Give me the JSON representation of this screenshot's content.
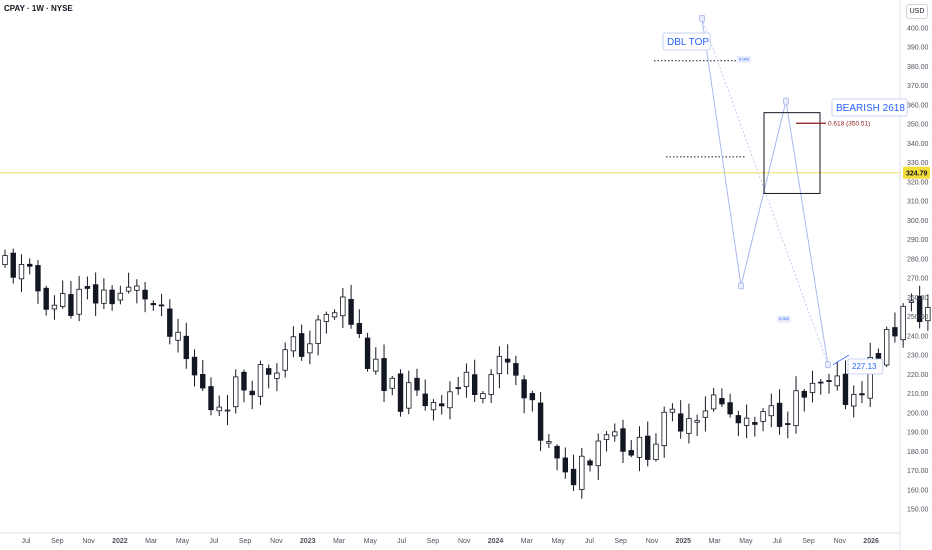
{
  "header": {
    "symbol": "CPAY",
    "interval": "1W",
    "exchange": "NYSE",
    "title": "CPAY · 1W · NYSE",
    "currency": "USD"
  },
  "colors": {
    "candle": "#131722",
    "up_fill": "#ffffff",
    "down_fill": "#131722",
    "pattern": "#aab8ee",
    "label": "#2962ff",
    "fib": "#8b1a1a",
    "price_line": "#f2e05a",
    "axis_text": "#50535e"
  },
  "chart_data": {
    "type": "candlestick",
    "y_ticks": [
      "400.00",
      "390.00",
      "380.00",
      "370.00",
      "360.00",
      "350.00",
      "340.00",
      "330.00",
      "320.00",
      "310.00",
      "300.00",
      "290.00",
      "280.00",
      "270.00",
      "260.00",
      "250.00",
      "240.00",
      "230.00",
      "220.00",
      "210.00",
      "200.00",
      "190.00",
      "180.00",
      "170.00",
      "160.00",
      "150.00"
    ],
    "x_ticks": [
      "Jul",
      "Sep",
      "Nov",
      "2022",
      "Mar",
      "May",
      "Jul",
      "Sep",
      "Nov",
      "2023",
      "Mar",
      "May",
      "Jul",
      "Sep",
      "Nov",
      "2024",
      "Mar",
      "May",
      "Jul",
      "Sep",
      "Nov",
      "2025",
      "Mar",
      "May",
      "Jul",
      "Sep",
      "Nov",
      "2026"
    ],
    "ylim": [
      150,
      405
    ],
    "last_price": 324.79,
    "anchors": [
      [
        "2021-06-21",
        279
      ],
      [
        "2021-08-02",
        257
      ],
      [
        "2021-09-20",
        262
      ],
      [
        "2021-10-18",
        262
      ],
      [
        "2021-12-13",
        204
      ],
      [
        "2022-03-07",
        238
      ],
      [
        "2022-04-04",
        257
      ],
      [
        "2022-05-09",
        210
      ],
      [
        "2022-06-13",
        207
      ],
      [
        "2022-08-22",
        224
      ],
      [
        "2022-10-10",
        163
      ],
      [
        "2022-11-14",
        194
      ],
      [
        "2022-12-12",
        180
      ],
      [
        "2023-01-09",
        196
      ],
      [
        "2023-02-13",
        207
      ],
      [
        "2023-03-13",
        189
      ],
      [
        "2023-04-10",
        201
      ],
      [
        "2023-05-15",
        211
      ],
      [
        "2023-06-12",
        210
      ],
      [
        "2023-07-24",
        252
      ],
      [
        "2023-09-04",
        255
      ],
      [
        "2023-10-16",
        228
      ],
      [
        "2023-11-20",
        262
      ],
      [
        "2024-01-08",
        285
      ],
      [
        "2024-02-12",
        307
      ],
      [
        "2024-03-11",
        310
      ],
      [
        "2024-04-08",
        290
      ],
      [
        "2024-05-06",
        272
      ],
      [
        "2024-05-27",
        252
      ],
      [
        "2024-07-08",
        278
      ],
      [
        "2024-08-12",
        278
      ],
      [
        "2024-09-16",
        309
      ],
      [
        "2024-10-14",
        330
      ],
      [
        "2024-11-11",
        370
      ],
      [
        "2024-11-25",
        375
      ],
      [
        "2024-12-16",
        343
      ],
      [
        "2025-01-13",
        375
      ],
      [
        "2025-02-10",
        374
      ],
      [
        "2025-03-03",
        338
      ],
      [
        "2025-04-07",
        278
      ],
      [
        "2025-04-28",
        330
      ],
      [
        "2025-05-26",
        345
      ],
      [
        "2025-06-16",
        322
      ],
      [
        "2025-07-07",
        325
      ]
    ]
  },
  "annotations": {
    "dbl_top": "DBL TOP",
    "bearish": "BEARISH 2618",
    "fib": "0.618 (350.51)",
    "target": "227.13",
    "ratio_top": "0.000",
    "ratio_bottom": "0.000",
    "fib_level": 350.51
  }
}
